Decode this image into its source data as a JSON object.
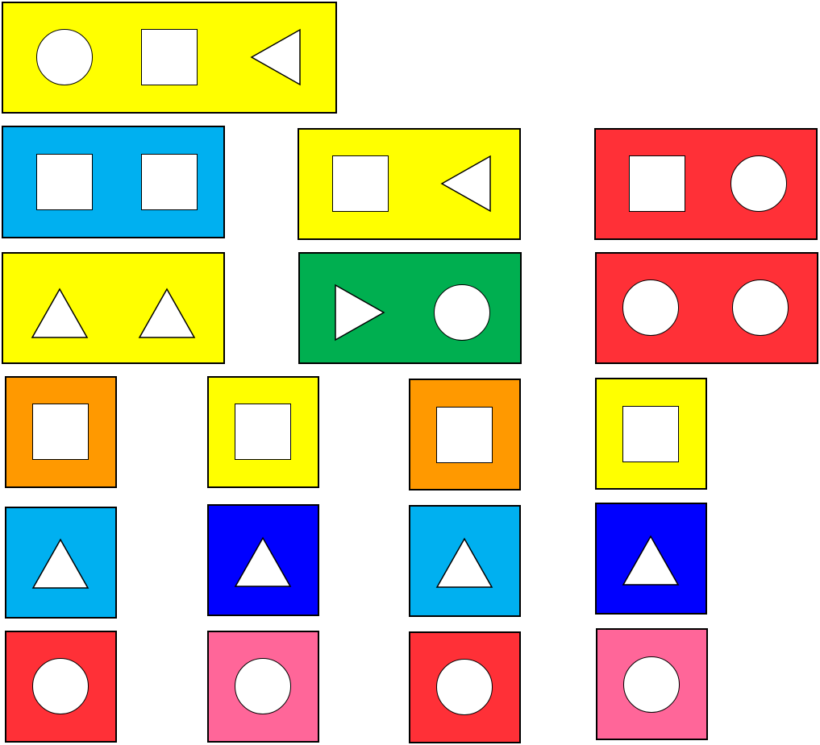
{
  "colors": {
    "yellow": "#FFFF00",
    "cyan": "#00B0F0",
    "red": "#FF3037",
    "green": "#00AF50",
    "orange": "#FF9900",
    "blue": "#0000FF",
    "pink": "#FF6699",
    "shape_fill": "#FFFFFF",
    "outline": "#000000"
  },
  "cards": [
    {
      "color": "yellow",
      "shapes": [
        "circle",
        "square",
        "triangle-left"
      ]
    },
    {
      "color": "cyan",
      "shapes": [
        "square",
        "square"
      ]
    },
    {
      "color": "yellow",
      "shapes": [
        "square",
        "triangle-left"
      ]
    },
    {
      "color": "red",
      "shapes": [
        "square",
        "circle"
      ]
    },
    {
      "color": "yellow",
      "shapes": [
        "triangle-up",
        "triangle-up"
      ]
    },
    {
      "color": "green",
      "shapes": [
        "triangle-right",
        "circle"
      ]
    },
    {
      "color": "red",
      "shapes": [
        "circle",
        "circle"
      ]
    },
    {
      "color": "orange",
      "shapes": [
        "square"
      ]
    },
    {
      "color": "yellow",
      "shapes": [
        "square"
      ]
    },
    {
      "color": "orange",
      "shapes": [
        "square"
      ]
    },
    {
      "color": "yellow",
      "shapes": [
        "square"
      ]
    },
    {
      "color": "cyan",
      "shapes": [
        "triangle-up"
      ]
    },
    {
      "color": "blue",
      "shapes": [
        "triangle-up"
      ]
    },
    {
      "color": "cyan",
      "shapes": [
        "triangle-up"
      ]
    },
    {
      "color": "blue",
      "shapes": [
        "triangle-up"
      ]
    },
    {
      "color": "red",
      "shapes": [
        "circle"
      ]
    },
    {
      "color": "pink",
      "shapes": [
        "circle"
      ]
    },
    {
      "color": "red",
      "shapes": [
        "circle"
      ]
    },
    {
      "color": "pink",
      "shapes": [
        "circle"
      ]
    }
  ]
}
